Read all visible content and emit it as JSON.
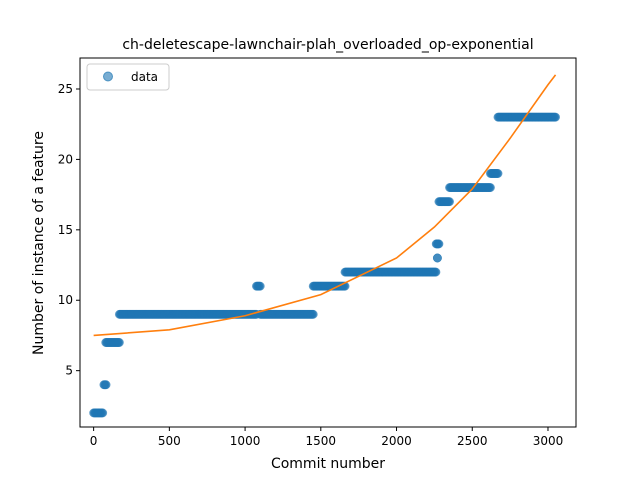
{
  "chart_data": {
    "type": "scatter",
    "title": "ch-deletescape-lawnchair-plah_overloaded_op-exponential",
    "xlabel": "Commit number",
    "ylabel": "Number of instance of a feature",
    "xlim": [
      -90,
      3185
    ],
    "ylim": [
      1.0,
      27.2
    ],
    "xticks": [
      0,
      500,
      1000,
      1500,
      2000,
      2500,
      3000
    ],
    "yticks": [
      5,
      10,
      15,
      20,
      25
    ],
    "grid": false,
    "legend": {
      "position": "top-left",
      "entries": [
        {
          "label": "data",
          "marker": "circle"
        }
      ]
    },
    "colors": {
      "data": "#1f77b4",
      "fit": "#ff7f0e"
    },
    "series": [
      {
        "name": "data",
        "kind": "scatter",
        "segments": [
          {
            "x0": 0,
            "x1": 60,
            "y": 2
          },
          {
            "x0": 68,
            "x1": 82,
            "y": 4
          },
          {
            "x0": 80,
            "x1": 170,
            "y": 7
          },
          {
            "x0": 170,
            "x1": 1075,
            "y": 9
          },
          {
            "x0": 1075,
            "x1": 1100,
            "y": 11
          },
          {
            "x0": 1100,
            "x1": 1450,
            "y": 9
          },
          {
            "x0": 1450,
            "x1": 1660,
            "y": 11
          },
          {
            "x0": 1660,
            "x1": 2260,
            "y": 12
          },
          {
            "x0": 2262,
            "x1": 2280,
            "y": 14
          },
          {
            "x0": 2270,
            "x1": 2270,
            "y": 13
          },
          {
            "x0": 2280,
            "x1": 2350,
            "y": 17
          },
          {
            "x0": 2350,
            "x1": 2620,
            "y": 18
          },
          {
            "x0": 2620,
            "x1": 2670,
            "y": 19
          },
          {
            "x0": 2670,
            "x1": 3050,
            "y": 23
          }
        ]
      },
      {
        "name": "fit",
        "kind": "line",
        "model": "exponential",
        "x": [
          0,
          500,
          1000,
          1500,
          2000,
          2250,
          2500,
          2750,
          3000,
          3050
        ],
        "y": [
          7.5,
          7.9,
          8.9,
          10.4,
          13.0,
          15.2,
          17.9,
          21.5,
          25.3,
          26.0
        ]
      }
    ]
  }
}
